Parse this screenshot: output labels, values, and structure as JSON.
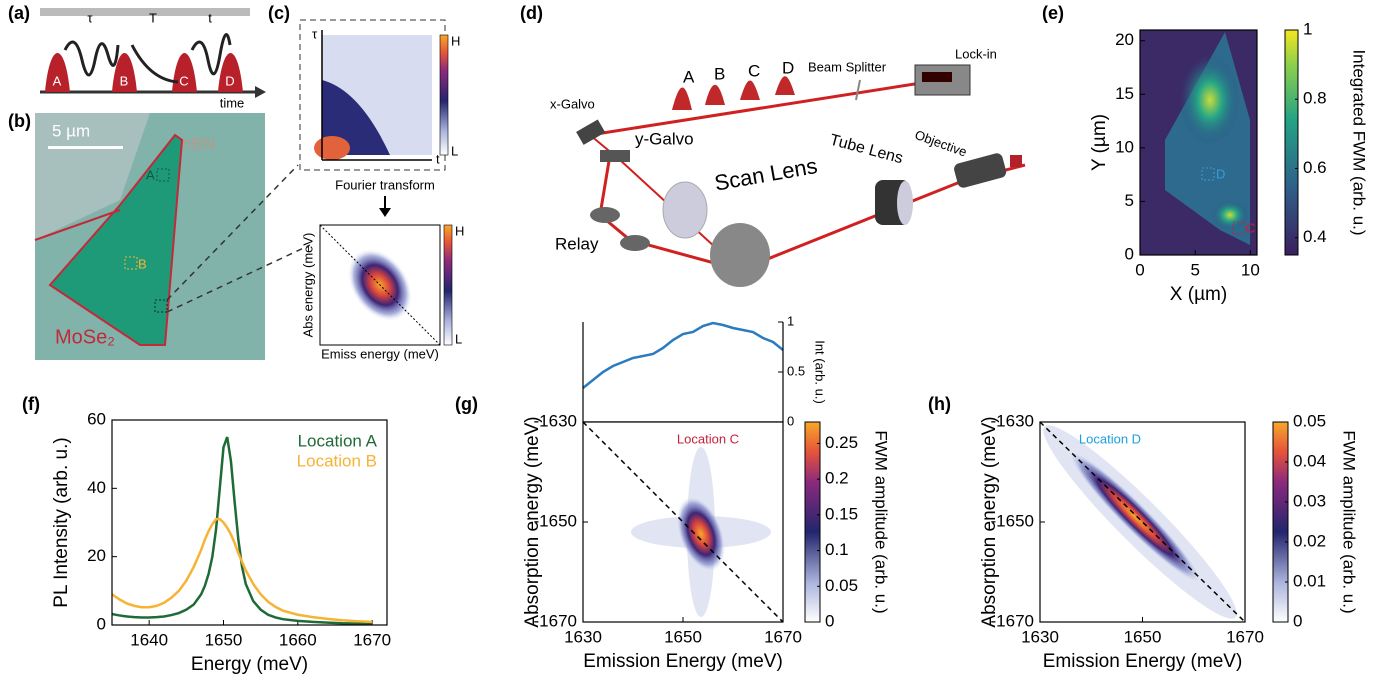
{
  "panels": [
    "(a)",
    "(b)",
    "(c)",
    "(d)",
    "(e)",
    "(f)",
    "(g)",
    "(h)"
  ],
  "panel_a": {
    "labels": [
      "τ",
      "T",
      "t",
      "A",
      "B",
      "C",
      "D",
      "time"
    ]
  },
  "panel_b": {
    "scale": "5 µm",
    "material": "hBN",
    "spots": [
      "A",
      "B"
    ],
    "flake": "MoSe₂"
  },
  "panel_c": {
    "top_axes": [
      "τ",
      "t"
    ],
    "colorbar": [
      "H",
      "L"
    ],
    "arrow": "Fourier transform",
    "ylabel": "Abs energy (meV)",
    "xlabel": "Emiss energy (meV)"
  },
  "panel_d": {
    "pulses": [
      "A",
      "B",
      "C",
      "D"
    ],
    "parts": [
      "Beam Splitter",
      "Lock-in",
      "x-Galvo",
      "y-Galvo",
      "Scan Lens",
      "Tube Lens",
      "Objective",
      "Relay"
    ]
  },
  "chart_data": [
    {
      "type": "image",
      "xlabel": "X (µm)",
      "ylabel": "Y (µm)",
      "xlim": [
        0,
        10.6
      ],
      "ylim": [
        0,
        21
      ],
      "xticks": [
        0,
        5,
        10
      ],
      "yticks": [
        0,
        5,
        10,
        15,
        20
      ],
      "annotations": [
        "D",
        "C"
      ],
      "colorbar": {
        "label": "Integrated FWM (arb. u.)",
        "lim": [
          0.35,
          1
        ],
        "ticks": [
          0.4,
          0.6,
          0.8,
          1
        ]
      }
    },
    {
      "type": "line",
      "xlabel": "Energy (meV)",
      "ylabel": "PL Intensity (arb. u.)",
      "xlim": [
        1635,
        1672
      ],
      "ylim": [
        0,
        60
      ],
      "xticks": [
        1640,
        1650,
        1660,
        1670
      ],
      "yticks": [
        0,
        20,
        40,
        60
      ],
      "x": [
        1635,
        1636,
        1637,
        1638,
        1639,
        1640,
        1641,
        1642,
        1643,
        1644,
        1645,
        1646,
        1647,
        1647.5,
        1648,
        1648.5,
        1649,
        1649.5,
        1650,
        1650.5,
        1651,
        1651.5,
        1652,
        1652.5,
        1653,
        1654,
        1655,
        1656,
        1657,
        1658,
        1660,
        1662,
        1664,
        1666,
        1668,
        1670
      ],
      "series": [
        {
          "name": "Location A",
          "color": "#1e6b36",
          "values": [
            3.2,
            2.8,
            2.5,
            2.3,
            2.2,
            2.2,
            2.3,
            2.5,
            2.9,
            3.5,
            4.5,
            6,
            9,
            11.5,
            15,
            20,
            28,
            40,
            52,
            55,
            48,
            36,
            25,
            17,
            12,
            7,
            4.5,
            3,
            2.2,
            1.7,
            1.2,
            0.9,
            0.7,
            0.5,
            0.4,
            0.3
          ]
        },
        {
          "name": "Location B",
          "color": "#f6b334",
          "values": [
            9,
            7.5,
            6.3,
            5.6,
            5.2,
            5.2,
            5.6,
            6.5,
            8,
            10,
            13,
            17,
            22,
            25,
            27.5,
            29.5,
            31,
            31,
            30,
            28.5,
            26.5,
            24,
            21,
            18.5,
            16,
            12,
            9,
            6.8,
            5.3,
            4.2,
            3,
            2.3,
            1.8,
            1.4,
            1.1,
            0.9
          ]
        }
      ]
    },
    {
      "type": "line",
      "ylabel": "Int (arb. u.)",
      "xlim": [
        1630,
        1670
      ],
      "ylim": [
        0,
        1
      ],
      "yticks": [
        0,
        0.5,
        1
      ],
      "x": [
        1630,
        1632,
        1634,
        1636,
        1638,
        1640,
        1642,
        1644,
        1646,
        1648,
        1650,
        1652,
        1654,
        1656,
        1658,
        1660,
        1662,
        1664,
        1666,
        1668,
        1670
      ],
      "series": [
        {
          "color": "#2a7bbf",
          "values": [
            0.34,
            0.42,
            0.5,
            0.56,
            0.6,
            0.64,
            0.66,
            0.68,
            0.74,
            0.82,
            0.88,
            0.9,
            0.96,
            0.99,
            0.97,
            0.94,
            0.92,
            0.9,
            0.84,
            0.8,
            0.72
          ]
        }
      ]
    },
    {
      "type": "heatmap",
      "xlabel": "Emission Energy (meV)",
      "ylabel": "Absorption energy (meV)",
      "xlim": [
        1630,
        1670
      ],
      "ylim": [
        -1670,
        -1630
      ],
      "xticks": [
        1630,
        1650,
        1670
      ],
      "yticks": [
        -1630,
        -1650,
        -1670
      ],
      "annotation": "Location C",
      "annotation_color": "#c8203a",
      "colorbar": {
        "label": "FWM amplitude (arb. u.)",
        "lim": [
          0,
          0.28
        ],
        "ticks": [
          0,
          0.05,
          0.1,
          0.15,
          0.2,
          0.25
        ]
      }
    },
    {
      "type": "heatmap",
      "xlabel": "Emission Energy (meV)",
      "ylabel": "Absorption energy (meV)",
      "xlim": [
        1630,
        1670
      ],
      "ylim": [
        -1670,
        -1630
      ],
      "xticks": [
        1630,
        1650,
        1670
      ],
      "yticks": [
        -1630,
        -1650,
        -1670
      ],
      "annotation": "Location D",
      "annotation_color": "#1aa0e0",
      "colorbar": {
        "label": "FWM amplitude (arb. u.)",
        "lim": [
          0,
          0.05
        ],
        "ticks": [
          0,
          0.01,
          0.02,
          0.03,
          0.04,
          0.05
        ]
      }
    }
  ]
}
